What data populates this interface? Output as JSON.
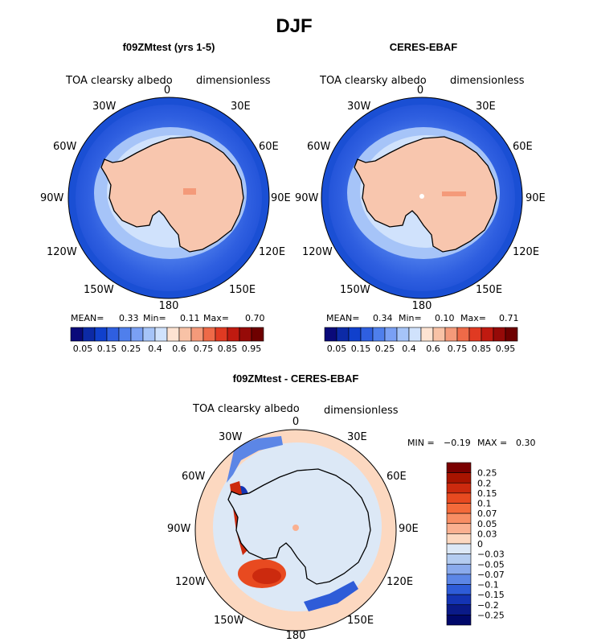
{
  "chart_data": {
    "type": "heatmap",
    "title": "DJF",
    "panels": [
      {
        "id": "model",
        "title": "f09ZMtest (yrs 1-5)",
        "left_label": "TOA clearsky albedo",
        "right_label": "dimensionless",
        "stats": {
          "mean_label": "MEAN=",
          "mean": "0.33",
          "min_label": "Min=",
          "min": "0.11",
          "max_label": "Max=",
          "max": "0.70"
        },
        "lon_labels": [
          "0",
          "30E",
          "60E",
          "90E",
          "120E",
          "150E",
          "180",
          "150W",
          "120W",
          "90W",
          "60W",
          "30W"
        ],
        "colorbar": {
          "labels": [
            "0.05",
            "0.15",
            "0.25",
            "0.4",
            "0.6",
            "0.75",
            "0.85",
            "0.95"
          ],
          "colors": [
            "#0a0a7a",
            "#0c2aa6",
            "#1040cc",
            "#2f5fe0",
            "#4f7fec",
            "#7aa0f4",
            "#a6c4f8",
            "#d0e2fc",
            "#fde3d2",
            "#f8c2a6",
            "#f49a7a",
            "#ee6a48",
            "#e03a22",
            "#c01a10",
            "#960a08",
            "#6e0000"
          ]
        }
      },
      {
        "id": "obs",
        "title": "CERES-EBAF",
        "left_label": "TOA clearsky albedo",
        "right_label": "dimensionless",
        "stats": {
          "mean_label": "MEAN=",
          "mean": "0.34",
          "min_label": "Min=",
          "min": "0.10",
          "max_label": "Max=",
          "max": "0.71"
        },
        "lon_labels": [
          "0",
          "30E",
          "60E",
          "90E",
          "120E",
          "150E",
          "180",
          "150W",
          "120W",
          "90W",
          "60W",
          "30W"
        ],
        "colorbar": {
          "labels": [
            "0.05",
            "0.15",
            "0.25",
            "0.4",
            "0.6",
            "0.75",
            "0.85",
            "0.95"
          ],
          "colors": [
            "#0a0a7a",
            "#0c2aa6",
            "#1040cc",
            "#2f5fe0",
            "#4f7fec",
            "#7aa0f4",
            "#a6c4f8",
            "#d0e2fc",
            "#fde3d2",
            "#f8c2a6",
            "#f49a7a",
            "#ee6a48",
            "#e03a22",
            "#c01a10",
            "#960a08",
            "#6e0000"
          ]
        }
      },
      {
        "id": "diff",
        "title": "f09ZMtest - CERES-EBAF",
        "left_label": "TOA clearsky albedo",
        "right_label": "dimensionless",
        "stats": {
          "min_label": "MIN =",
          "min": "−0.19",
          "max_label": "MAX =",
          "max": "0.30"
        },
        "lon_labels": [
          "0",
          "30E",
          "60E",
          "90E",
          "120E",
          "150E",
          "180",
          "150W",
          "120W",
          "90W",
          "60W",
          "30W"
        ],
        "colorbar": {
          "labels": [
            "0.25",
            "0.2",
            "0.15",
            "0.1",
            "0.07",
            "0.05",
            "0.03",
            "0",
            "−0.03",
            "−0.05",
            "−0.07",
            "−0.1",
            "−0.15",
            "−0.2",
            "−0.25"
          ],
          "colors": [
            "#7a0000",
            "#a81400",
            "#cc2a0e",
            "#e84a20",
            "#f46a3a",
            "#f88e64",
            "#fab090",
            "#fcd8c0",
            "#dce8f6",
            "#b4ccf0",
            "#8aaaec",
            "#5c86e6",
            "#2e5cd8",
            "#1434b4",
            "#0a1a88",
            "#00086a"
          ]
        }
      }
    ],
    "legend_placement": "below maps (top panels), right of map (difference panel)"
  }
}
